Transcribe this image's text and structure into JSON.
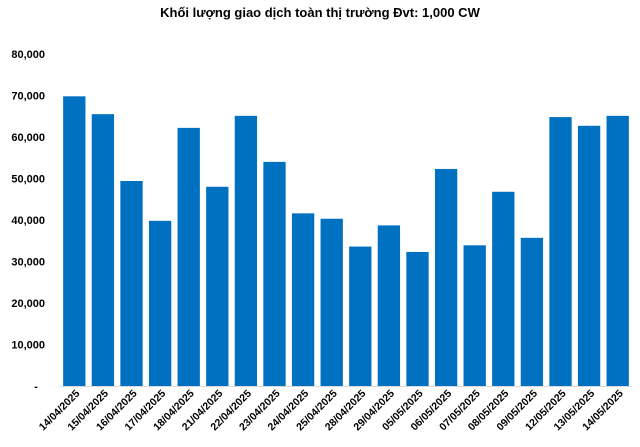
{
  "chart_data": {
    "type": "bar",
    "title": "Khối lượng giao dịch toàn thị trường Đvt: 1,000 CW",
    "xlabel": "",
    "ylabel": "",
    "categories": [
      "14/04/2025",
      "15/04/2025",
      "16/04/2025",
      "17/04/2025",
      "18/04/2025",
      "21/04/2025",
      "22/04/2025",
      "23/04/2025",
      "24/04/2025",
      "25/04/2025",
      "28/04/2025",
      "29/04/2025",
      "05/05/2025",
      "06/05/2025",
      "07/05/2025",
      "08/05/2025",
      "09/05/2025",
      "12/05/2025",
      "13/05/2025",
      "14/05/2025"
    ],
    "values": [
      69800,
      65500,
      49400,
      39800,
      62200,
      48000,
      65100,
      54000,
      41600,
      40300,
      33600,
      38700,
      32300,
      52300,
      33900,
      46800,
      35700,
      64800,
      62700,
      65100
    ],
    "ylim": [
      0,
      80000
    ],
    "yticks": [
      "-",
      "10,000",
      "20,000",
      "30,000",
      "40,000",
      "50,000",
      "60,000",
      "70,000",
      "80,000"
    ],
    "grid": false,
    "bar_color": "#0070C0"
  }
}
